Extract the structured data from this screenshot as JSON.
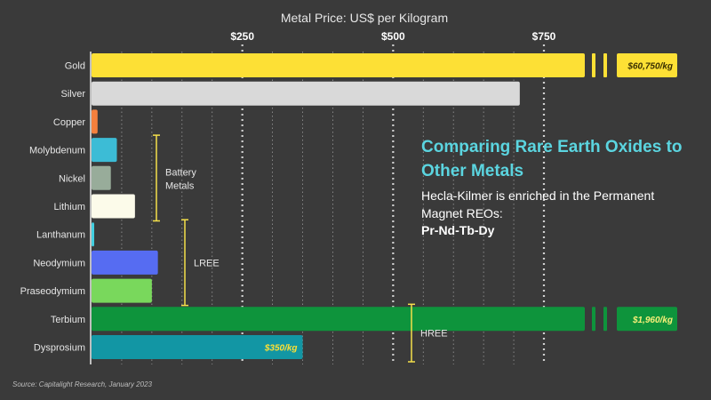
{
  "chart_data": {
    "type": "bar",
    "orientation": "horizontal",
    "title": "Comparing Rare Earth Oxides to Other Metals",
    "xlabel": "Metal Price: US$ per Kilogram",
    "x_ticks": [
      {
        "value": 250,
        "label": "$250"
      },
      {
        "value": 500,
        "label": "$500"
      },
      {
        "value": 750,
        "label": "$750"
      }
    ],
    "xlim": [
      0,
      800
    ],
    "grid": "vertical dotted",
    "categories": [
      "Gold",
      "Silver",
      "Copper",
      "Molybdenum",
      "Nickel",
      "Lithium",
      "Lanthanum",
      "Neodymium",
      "Praseodymium",
      "Terbium",
      "Dysprosium"
    ],
    "values": [
      60750,
      710,
      10,
      42,
      32,
      72,
      3,
      110,
      100,
      1960,
      350
    ],
    "axis_break": {
      "Gold": true,
      "Terbium": true
    },
    "value_labels": {
      "Gold": "$60,750/kg",
      "Terbium": "$1,960/kg",
      "Dysprosium": "$350/kg"
    },
    "colors": [
      "#fde035",
      "#d9d9d9",
      "#f4803d",
      "#3cbcd6",
      "#98ac9a",
      "#fcfbea",
      "#42cfe0",
      "#566cf2",
      "#79d85c",
      "#0e943c",
      "#1296a4"
    ],
    "groups": [
      {
        "label": "Battery\nMetals",
        "from": "Molybdenum",
        "to": "Lithium"
      },
      {
        "label": "LREE",
        "from": "Lanthanum",
        "to": "Praseodymium"
      },
      {
        "label": "HREE",
        "from": "Terbium",
        "to": "Dysprosium"
      }
    ]
  },
  "text": {
    "subtitle": "Hecla-Kilmer is enriched in the Permanent Magnet REOs:",
    "emphasis": "Pr-Nd-Tb-Dy",
    "source": "Source: Capitalight Research, January 2023"
  },
  "colors": {
    "background": "#3a3a3a",
    "headline": "#5bd5e0",
    "bracket": "#f5e04a",
    "value_label": "#fde035"
  }
}
